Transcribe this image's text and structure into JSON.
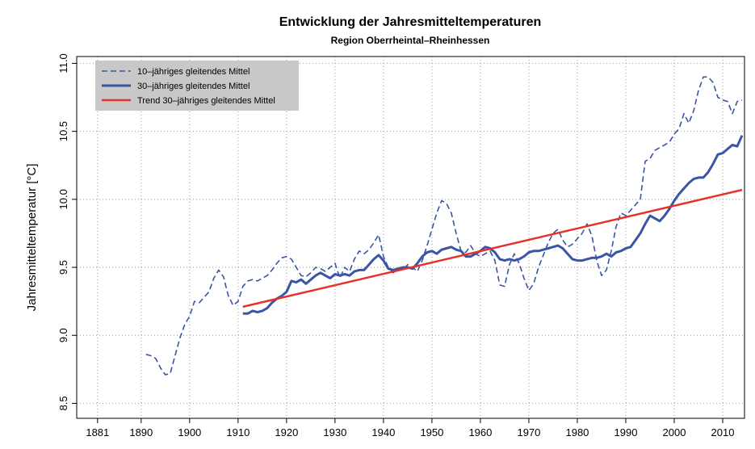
{
  "chart_data": {
    "type": "line",
    "title": "Entwicklung der Jahresmitteltemperaturen",
    "subtitle": "Region Oberrheintal–Rheinhessen",
    "y_label": "Jahresmitteltemperatur [°C]",
    "xlim": [
      1876.7,
      2014.5
    ],
    "xticks": [
      1881,
      1890,
      1900,
      1910,
      1920,
      1930,
      1940,
      1950,
      1960,
      1970,
      1980,
      1990,
      2000,
      2010
    ],
    "ylim": [
      8.39,
      11.05
    ],
    "yticks": [
      {
        "value": 8.5,
        "label": "8.5"
      },
      {
        "value": 9,
        "label": "9.0"
      },
      {
        "value": 9.5,
        "label": "9.5"
      },
      {
        "value": 10,
        "label": "10.0"
      },
      {
        "value": 10.5,
        "label": "10.5"
      },
      {
        "value": 11,
        "label": "11.0"
      }
    ],
    "grid": true,
    "legend": "top-left",
    "x": [
      1891,
      1892,
      1893,
      1894,
      1895,
      1896,
      1897,
      1898,
      1899,
      1900,
      1901,
      1902,
      1903,
      1904,
      1905,
      1906,
      1907,
      1908,
      1909,
      1910,
      1911,
      1912,
      1913,
      1914,
      1915,
      1916,
      1917,
      1918,
      1919,
      1920,
      1921,
      1922,
      1923,
      1924,
      1925,
      1926,
      1927,
      1928,
      1929,
      1930,
      1931,
      1932,
      1933,
      1934,
      1935,
      1936,
      1937,
      1938,
      1939,
      1940,
      1941,
      1942,
      1943,
      1944,
      1945,
      1946,
      1947,
      1948,
      1949,
      1950,
      1951,
      1952,
      1953,
      1954,
      1955,
      1956,
      1957,
      1958,
      1959,
      1960,
      1961,
      1962,
      1963,
      1964,
      1965,
      1966,
      1967,
      1968,
      1969,
      1970,
      1971,
      1972,
      1973,
      1974,
      1975,
      1976,
      1977,
      1978,
      1979,
      1980,
      1981,
      1982,
      1983,
      1984,
      1985,
      1986,
      1987,
      1988,
      1989,
      1990,
      1991,
      1992,
      1993,
      1994,
      1995,
      1996,
      1997,
      1998,
      1999,
      2000,
      2001,
      2002,
      2003,
      2004,
      2005,
      2006,
      2007,
      2008,
      2009,
      2010,
      2011,
      2012,
      2013,
      2014
    ],
    "series": [
      {
        "name": "10–jähriges gleitendes Mittel",
        "color": "#3a55a4",
        "dash": true,
        "values": [
          8.86,
          8.85,
          8.83,
          8.76,
          8.71,
          8.72,
          8.85,
          8.98,
          9.08,
          9.14,
          9.25,
          9.24,
          9.28,
          9.32,
          9.42,
          9.48,
          9.43,
          9.29,
          9.22,
          9.25,
          9.36,
          9.4,
          9.41,
          9.4,
          9.42,
          9.44,
          9.48,
          9.53,
          9.57,
          9.58,
          9.56,
          9.5,
          9.44,
          9.43,
          9.46,
          9.5,
          9.49,
          9.47,
          9.5,
          9.53,
          9.42,
          9.5,
          9.47,
          9.56,
          9.62,
          9.6,
          9.63,
          9.68,
          9.74,
          9.58,
          9.5,
          9.46,
          9.49,
          9.48,
          9.52,
          9.5,
          9.47,
          9.55,
          9.66,
          9.78,
          9.9,
          9.99,
          9.97,
          9.9,
          9.75,
          9.62,
          9.61,
          9.66,
          9.6,
          9.58,
          9.6,
          9.62,
          9.55,
          9.37,
          9.36,
          9.52,
          9.6,
          9.53,
          9.42,
          9.33,
          9.38,
          9.5,
          9.59,
          9.68,
          9.75,
          9.78,
          9.7,
          9.65,
          9.67,
          9.71,
          9.75,
          9.82,
          9.73,
          9.55,
          9.44,
          9.48,
          9.62,
          9.8,
          9.9,
          9.88,
          9.92,
          9.96,
          10.0,
          10.28,
          10.3,
          10.36,
          10.38,
          10.4,
          10.42,
          10.48,
          10.52,
          10.63,
          10.56,
          10.65,
          10.8,
          10.9,
          10.9,
          10.86,
          10.75,
          10.73,
          10.72,
          10.63,
          10.72,
          10.73
        ]
      },
      {
        "name": "30–jähriges gleitendes Mittel",
        "color": "#3a55a4",
        "width": 3,
        "values": [
          null,
          null,
          null,
          null,
          null,
          null,
          null,
          null,
          null,
          null,
          null,
          null,
          null,
          null,
          null,
          null,
          null,
          null,
          null,
          null,
          9.16,
          9.16,
          9.18,
          9.17,
          9.18,
          9.2,
          9.24,
          9.27,
          9.29,
          9.32,
          9.4,
          9.39,
          9.41,
          9.38,
          9.41,
          9.44,
          9.46,
          9.44,
          9.42,
          9.45,
          9.44,
          9.45,
          9.44,
          9.47,
          9.48,
          9.48,
          9.52,
          9.56,
          9.59,
          9.55,
          9.49,
          9.48,
          9.49,
          9.5,
          9.5,
          9.49,
          9.53,
          9.58,
          9.61,
          9.62,
          9.6,
          9.63,
          9.64,
          9.65,
          9.63,
          9.62,
          9.58,
          9.58,
          9.6,
          9.62,
          9.65,
          9.64,
          9.61,
          9.56,
          9.55,
          9.56,
          9.55,
          9.56,
          9.58,
          9.61,
          9.62,
          9.62,
          9.63,
          9.64,
          9.65,
          9.66,
          9.64,
          9.6,
          9.56,
          9.55,
          9.55,
          9.56,
          9.57,
          9.57,
          9.58,
          9.6,
          9.58,
          9.61,
          9.62,
          9.64,
          9.65,
          9.7,
          9.75,
          9.82,
          9.88,
          9.86,
          9.84,
          9.88,
          9.93,
          9.99,
          10.04,
          10.08,
          10.12,
          10.15,
          10.16,
          10.16,
          10.2,
          10.26,
          10.33,
          10.34,
          10.37,
          10.4,
          10.39,
          10.47
        ]
      },
      {
        "name": "Trend 30–jähriges gleitendes Mittel",
        "color": "#e8302a",
        "width": 2.5,
        "x": [
          1911,
          2014
        ],
        "values": [
          9.21,
          10.07
        ]
      }
    ]
  }
}
